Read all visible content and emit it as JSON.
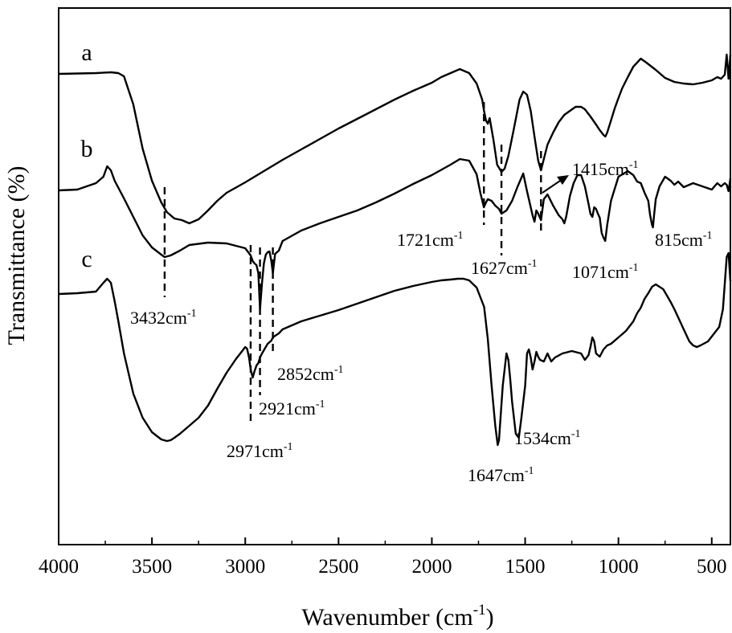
{
  "chart_data": {
    "type": "line",
    "xlabel": "Wavenumber (cm",
    "xlabel_sup": "-1",
    "xlabel_tail": ")",
    "ylabel": "Transmittance (%)",
    "xlim": [
      4000,
      400
    ],
    "x_reversed": true,
    "xticks": [
      4000,
      3500,
      3000,
      2500,
      2000,
      1500,
      1000,
      500
    ],
    "xtick_labels": [
      "4000",
      "3500",
      "3000",
      "2500",
      "2000",
      "1500",
      "1000",
      "500"
    ],
    "y_ticks_shown": false,
    "grid": false,
    "legend": "none",
    "line_color": "#000000",
    "series": [
      {
        "name": "a",
        "x": [
          4000,
          3800,
          3720,
          3680,
          3650,
          3600,
          3550,
          3500,
          3450,
          3420,
          3380,
          3340,
          3300,
          3250,
          3200,
          3150,
          3100,
          3000,
          2900,
          2800,
          2700,
          2600,
          2500,
          2400,
          2300,
          2200,
          2100,
          2000,
          1950,
          1900,
          1850,
          1800,
          1760,
          1730,
          1721,
          1710,
          1700,
          1690,
          1670,
          1650,
          1627,
          1610,
          1590,
          1560,
          1530,
          1510,
          1490,
          1470,
          1450,
          1430,
          1415,
          1400,
          1380,
          1350,
          1320,
          1290,
          1260,
          1230,
          1200,
          1180,
          1150,
          1120,
          1100,
          1080,
          1070,
          1060,
          1040,
          1020,
          1000,
          980,
          950,
          920,
          880,
          850,
          800,
          750,
          700,
          650,
          600,
          550,
          500,
          470,
          450,
          430,
          420,
          410,
          400
        ],
        "y": [
          92,
          91,
          90,
          91,
          95,
          130,
          185,
          225,
          252,
          264,
          272,
          274,
          278,
          273,
          262,
          250,
          240,
          227,
          213,
          199,
          186,
          173,
          160,
          148,
          136,
          124,
          113,
          103,
          96,
          91,
          86,
          91,
          104,
          124,
          137,
          150,
          154,
          147,
          174,
          205,
          214,
          210,
          194,
          160,
          124,
          114,
          118,
          138,
          170,
          200,
          212,
          198,
          180,
          165,
          152,
          143,
          138,
          133,
          133,
          136,
          145,
          155,
          162,
          168,
          170,
          165,
          150,
          135,
          122,
          110,
          96,
          83,
          73,
          78,
          87,
          97,
          102,
          104,
          105,
          103,
          100,
          96,
          98,
          93,
          68,
          98,
          68
        ]
      },
      {
        "name": "b",
        "x": [
          4000,
          3900,
          3800,
          3760,
          3740,
          3720,
          3700,
          3650,
          3600,
          3550,
          3500,
          3450,
          3432,
          3400,
          3350,
          3300,
          3200,
          3100,
          3000,
          2971,
          2960,
          2950,
          2940,
          2930,
          2921,
          2910,
          2900,
          2890,
          2880,
          2870,
          2860,
          2852,
          2840,
          2820,
          2800,
          2700,
          2600,
          2500,
          2400,
          2300,
          2200,
          2100,
          2000,
          1900,
          1850,
          1800,
          1760,
          1740,
          1721,
          1710,
          1700,
          1680,
          1660,
          1640,
          1627,
          1600,
          1570,
          1540,
          1510,
          1490,
          1470,
          1460,
          1450,
          1440,
          1430,
          1415,
          1400,
          1380,
          1350,
          1320,
          1300,
          1290,
          1280,
          1260,
          1240,
          1220,
          1200,
          1180,
          1160,
          1150,
          1140,
          1130,
          1120,
          1110,
          1100,
          1090,
          1080,
          1071,
          1060,
          1040,
          1000,
          950,
          920,
          900,
          880,
          860,
          840,
          830,
          820,
          815,
          810,
          800,
          780,
          750,
          720,
          700,
          680,
          650,
          600,
          550,
          500,
          470,
          450,
          430,
          420,
          410,
          400
        ],
        "y": [
          237,
          236,
          228,
          220,
          207,
          212,
          225,
          247,
          270,
          293,
          308,
          317,
          320,
          318,
          312,
          305,
          302,
          303,
          309,
          318,
          325,
          328,
          330,
          340,
          385,
          352,
          328,
          317,
          314,
          313,
          325,
          340,
          316,
          312,
          300,
          287,
          278,
          270,
          262,
          252,
          241,
          229,
          218,
          205,
          198,
          200,
          217,
          240,
          258,
          252,
          248,
          250,
          256,
          260,
          266,
          262,
          250,
          232,
          216,
          238,
          258,
          268,
          276,
          262,
          266,
          274,
          248,
          242,
          256,
          268,
          273,
          278,
          270,
          244,
          228,
          218,
          218,
          232,
          254,
          266,
          270,
          258,
          260,
          266,
          271,
          290,
          296,
          300,
          280,
          250,
          220,
          213,
          218,
          226,
          228,
          240,
          250,
          268,
          280,
          283,
          270,
          248,
          232,
          220,
          225,
          230,
          226,
          233,
          228,
          232,
          236,
          228,
          232,
          228,
          230,
          238,
          222
        ]
      },
      {
        "name": "c",
        "x": [
          4000,
          3900,
          3800,
          3760,
          3740,
          3720,
          3700,
          3680,
          3650,
          3600,
          3550,
          3500,
          3450,
          3420,
          3400,
          3380,
          3350,
          3300,
          3250,
          3200,
          3150,
          3100,
          3050,
          3020,
          3000,
          2990,
          2980,
          2971,
          2960,
          2950,
          2940,
          2930,
          2921,
          2910,
          2900,
          2880,
          2860,
          2852,
          2840,
          2820,
          2800,
          2700,
          2600,
          2500,
          2400,
          2300,
          2200,
          2100,
          2000,
          1950,
          1900,
          1860,
          1830,
          1800,
          1760,
          1720,
          1700,
          1680,
          1660,
          1647,
          1640,
          1620,
          1600,
          1590,
          1580,
          1570,
          1560,
          1550,
          1534,
          1520,
          1500,
          1490,
          1480,
          1470,
          1460,
          1450,
          1440,
          1430,
          1420,
          1400,
          1380,
          1370,
          1360,
          1340,
          1300,
          1250,
          1200,
          1180,
          1160,
          1150,
          1140,
          1130,
          1120,
          1100,
          1080,
          1060,
          1040,
          1000,
          960,
          920,
          900,
          880,
          860,
          840,
          820,
          800,
          760,
          720,
          700,
          680,
          650,
          620,
          600,
          580,
          560,
          520,
          480,
          460,
          440,
          420,
          410,
          400
        ],
        "y": [
          366,
          365,
          363,
          352,
          347,
          352,
          375,
          400,
          440,
          490,
          520,
          538,
          547,
          549,
          548,
          545,
          540,
          530,
          520,
          505,
          484,
          464,
          447,
          438,
          432,
          434,
          445,
          460,
          470,
          462,
          455,
          452,
          445,
          440,
          436,
          428,
          424,
          420,
          418,
          415,
          410,
          400,
          393,
          386,
          378,
          370,
          362,
          356,
          351,
          349,
          348,
          347,
          347,
          349,
          358,
          382,
          422,
          480,
          530,
          554,
          548,
          480,
          440,
          448,
          472,
          500,
          520,
          540,
          545,
          520,
          480,
          440,
          435,
          445,
          460,
          450,
          438,
          444,
          448,
          450,
          440,
          445,
          450,
          445,
          440,
          437,
          440,
          448,
          442,
          432,
          420,
          425,
          440,
          444,
          435,
          430,
          428,
          420,
          412,
          400,
          390,
          383,
          372,
          365,
          357,
          354,
          360,
          376,
          385,
          395,
          410,
          425,
          430,
          432,
          430,
          425,
          413,
          407,
          385,
          320,
          315,
          350
        ]
      }
    ],
    "series_labels": [
      "a",
      "b",
      "c"
    ],
    "annotations": [
      {
        "text": "3432cm",
        "sup": "-1"
      },
      {
        "text": "2971cm",
        "sup": "-1"
      },
      {
        "text": "2921cm",
        "sup": "-1"
      },
      {
        "text": "2852cm",
        "sup": "-1"
      },
      {
        "text": "1721cm",
        "sup": "-1"
      },
      {
        "text": "1627cm",
        "sup": "-1"
      },
      {
        "text": "1415cm",
        "sup": "-1"
      },
      {
        "text": "1071cm",
        "sup": "-1"
      },
      {
        "text": "815cm",
        "sup": "-1"
      },
      {
        "text": "1647cm",
        "sup": "-1"
      },
      {
        "text": "1534cm",
        "sup": "-1"
      }
    ]
  }
}
